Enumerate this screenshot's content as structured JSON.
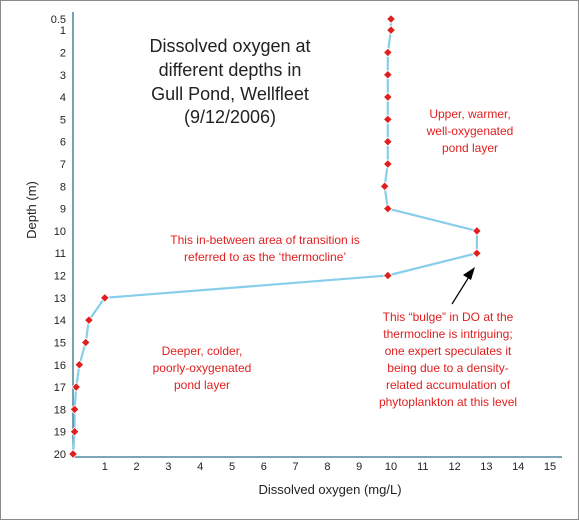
{
  "chart_data": {
    "type": "line",
    "title_lines": [
      "Dissolved oxygen at",
      "different depths in",
      "Gull Pond, Wellfleet",
      "(9/12/2006)"
    ],
    "xlabel": "Dissolved oxygen (mg/L)",
    "ylabel": "Depth (m)",
    "xlim": [
      0,
      15
    ],
    "ylim": [
      20,
      0.5
    ],
    "y_inverted": true,
    "grid": false,
    "x_ticks": [
      1,
      2,
      3,
      4,
      5,
      6,
      7,
      8,
      9,
      10,
      11,
      12,
      13,
      14,
      15
    ],
    "y_ticks": [
      "0.5",
      "1",
      "2",
      "3",
      "4",
      "5",
      "6",
      "7",
      "8",
      "9",
      "10",
      "11",
      "12",
      "13",
      "14",
      "15",
      "16",
      "17",
      "18",
      "19",
      "20"
    ],
    "series": [
      {
        "color": "#87ceeb",
        "marker_color": "#e02020",
        "x": [
          10.0,
          10.0,
          9.9,
          9.9,
          9.9,
          9.9,
          9.9,
          9.9,
          9.8,
          9.9,
          12.7,
          12.7,
          9.9,
          1.0,
          0.5,
          0.4,
          0.2,
          0.1,
          0.05,
          0.05,
          0.0
        ],
        "y": [
          0.5,
          1,
          2,
          3,
          4,
          5,
          6,
          7,
          8,
          9,
          10,
          11,
          12,
          13,
          14,
          15,
          16,
          17,
          18,
          19,
          20
        ]
      }
    ],
    "annotations": {
      "upper_lines": [
        "Upper, warmer,",
        "well-oxygenated",
        "pond layer"
      ],
      "transition_lines": [
        "This in-between area of transition is",
        "referred to as the ‘thermocline’"
      ],
      "deeper_lines": [
        "Deeper, colder,",
        "poorly-oxygenated",
        "pond layer"
      ],
      "bulge_lines": [
        "This “bulge” in DO at the",
        "thermocline is intriguing;",
        "one expert speculates it",
        "being due to a density-",
        "related accumulation of",
        "phytoplankton at this level"
      ]
    },
    "arrow_color": "#000000"
  }
}
